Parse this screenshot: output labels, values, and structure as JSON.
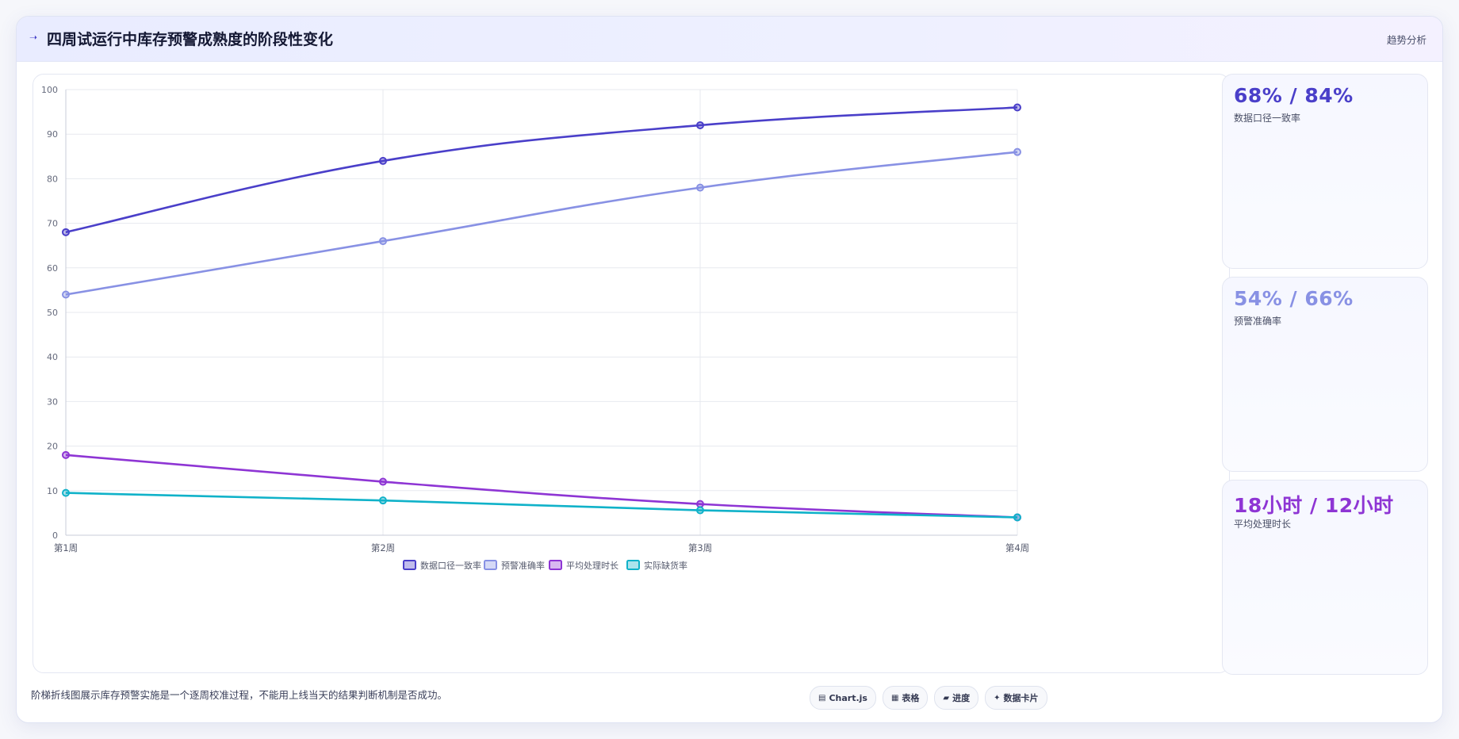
{
  "header": {
    "title": "四周试运行中库存预警成熟度的阶段性变化",
    "tag": "趋势分析",
    "icon": "trend-icon"
  },
  "colors": {
    "accent": "#4a3fc9",
    "series": [
      "#4a3fc9",
      "#8891e4",
      "#8e35d4",
      "#10b2c9"
    ]
  },
  "metrics": [
    {
      "value": "68% / 84%",
      "label": "数据口径一致率",
      "color": "#4a3fc9"
    },
    {
      "value": "54% / 66%",
      "label": "预警准确率",
      "color": "#8891e4"
    },
    {
      "value": "18小时 / 12小时",
      "label": "平均处理时长",
      "color": "#8e35d4"
    }
  ],
  "caption": "阶梯折线图展示库存预警实施是一个逐周校准过程，不能用上线当天的结果判断机制是否成功。",
  "chips": [
    {
      "icon": "chart-icon",
      "glyph": "▤",
      "label": "Chart.js"
    },
    {
      "icon": "table-icon",
      "glyph": "▦",
      "label": "表格"
    },
    {
      "icon": "progress-icon",
      "glyph": "▰",
      "label": "进度"
    },
    {
      "icon": "card-icon",
      "glyph": "✦",
      "label": "数据卡片"
    }
  ],
  "chart_data": {
    "type": "line",
    "categories": [
      "第1周",
      "第2周",
      "第3周",
      "第4周"
    ],
    "ylim": [
      0,
      100
    ],
    "yticks": [
      0,
      10,
      20,
      30,
      40,
      50,
      60,
      70,
      80,
      90,
      100
    ],
    "grid": true,
    "legend": "bottom",
    "series": [
      {
        "name": "数据口径一致率",
        "values": [
          68,
          84,
          92,
          96
        ]
      },
      {
        "name": "预警准确率",
        "values": [
          54,
          66,
          78,
          86
        ]
      },
      {
        "name": "平均处理时长",
        "values": [
          18,
          12,
          7,
          4
        ]
      },
      {
        "name": "实际缺货率",
        "values": [
          9.5,
          7.8,
          5.6,
          4
        ]
      }
    ]
  }
}
